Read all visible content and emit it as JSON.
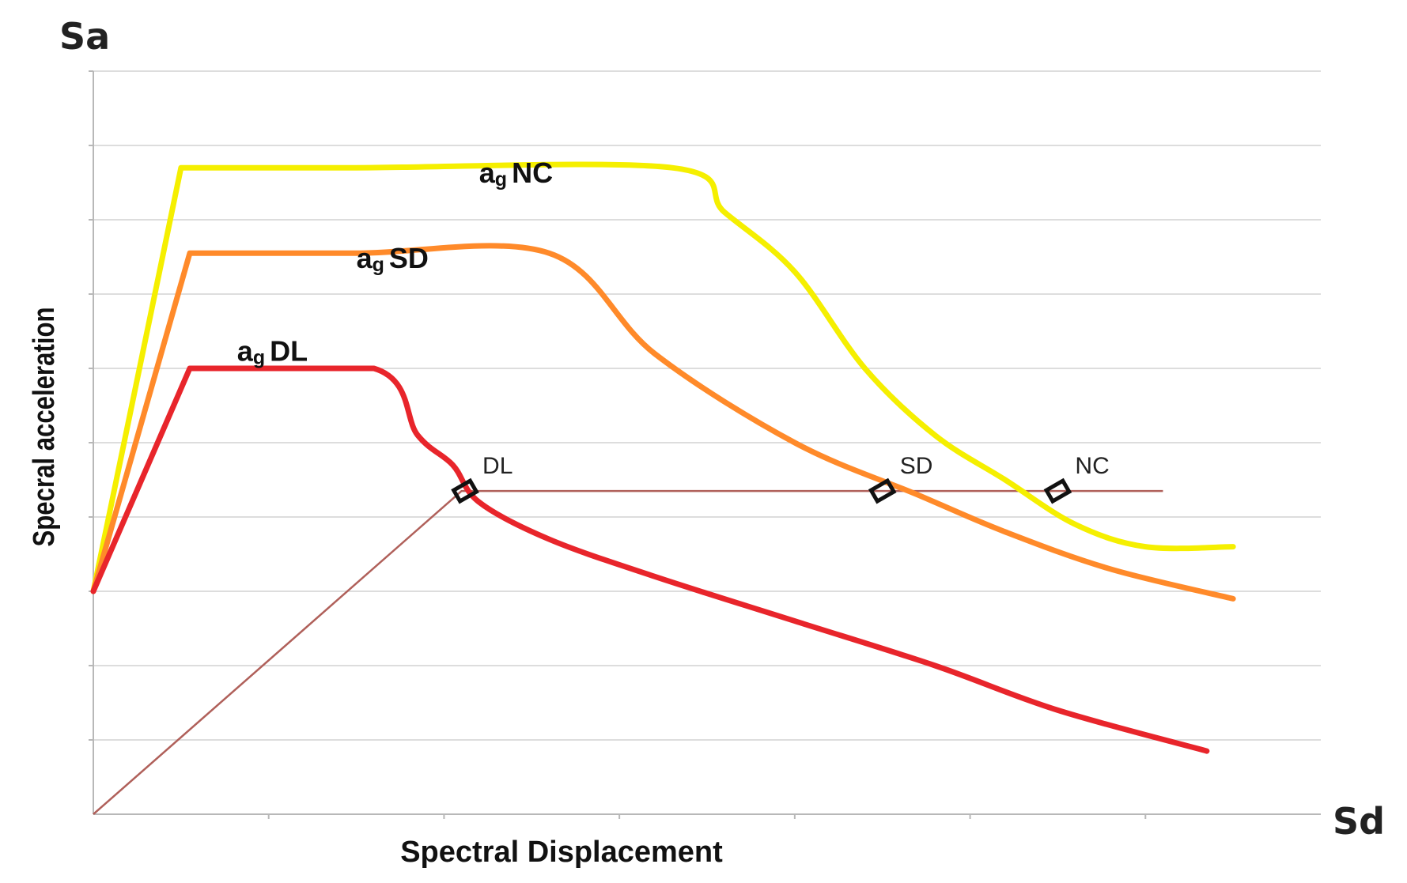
{
  "chart_data": {
    "type": "line",
    "title": "",
    "x_symbol": "Sd",
    "y_symbol": "Sa",
    "xlabel": "Spectral Displacement",
    "ylabel": "Specral acceleration",
    "xlim": [
      0,
      7
    ],
    "ylim": [
      0,
      10
    ],
    "grid": "horizontal",
    "y_gridlines": [
      1,
      2,
      3,
      4,
      5,
      6,
      7,
      8,
      9,
      10
    ],
    "x_ticks": [
      1,
      2,
      3,
      4,
      5,
      6
    ],
    "series": [
      {
        "name": "NC",
        "label_main": "a",
        "label_sub": "g",
        "label_rest": "NC",
        "label_at": [
          2.2,
          8.5
        ],
        "color": "#f5ef00",
        "x": [
          0,
          0.5,
          1.5,
          3.3,
          3.6,
          4.0,
          4.4,
          4.8,
          5.2,
          5.6,
          6.0,
          6.5
        ],
        "y": [
          3.0,
          8.7,
          8.7,
          8.7,
          8.1,
          7.3,
          6.0,
          5.1,
          4.5,
          3.9,
          3.6,
          3.6
        ]
      },
      {
        "name": "SD",
        "label_main": "a",
        "label_sub": "g",
        "label_rest": "SD",
        "label_at": [
          1.5,
          7.35
        ],
        "color": "#ff8a2a",
        "x": [
          0,
          0.55,
          1.5,
          2.6,
          3.2,
          4.0,
          4.7,
          5.2,
          5.8,
          6.5
        ],
        "y": [
          3.0,
          7.55,
          7.55,
          7.55,
          6.2,
          5.0,
          4.3,
          3.8,
          3.3,
          2.9
        ]
      },
      {
        "name": "DL",
        "label_main": "a",
        "label_sub": "g",
        "label_rest": "DL",
        "label_at": [
          0.82,
          6.1
        ],
        "color": "#e8252b",
        "x": [
          0,
          0.55,
          1.6,
          1.85,
          2.05,
          2.2,
          2.6,
          3.2,
          4.0,
          4.8,
          5.5,
          6.35
        ],
        "y": [
          3.0,
          6.0,
          6.0,
          5.1,
          4.7,
          4.2,
          3.7,
          3.2,
          2.6,
          2.0,
          1.4,
          0.85
        ]
      }
    ],
    "demand_line": {
      "color": "#b0605a",
      "x": [
        0,
        2.1,
        6.1
      ],
      "y": [
        0,
        4.35,
        4.35
      ]
    },
    "performance_points": [
      {
        "label": "DL",
        "x": 2.12,
        "y": 4.35
      },
      {
        "label": "SD",
        "x": 4.5,
        "y": 4.35
      },
      {
        "label": "NC",
        "x": 5.5,
        "y": 4.35
      }
    ]
  }
}
